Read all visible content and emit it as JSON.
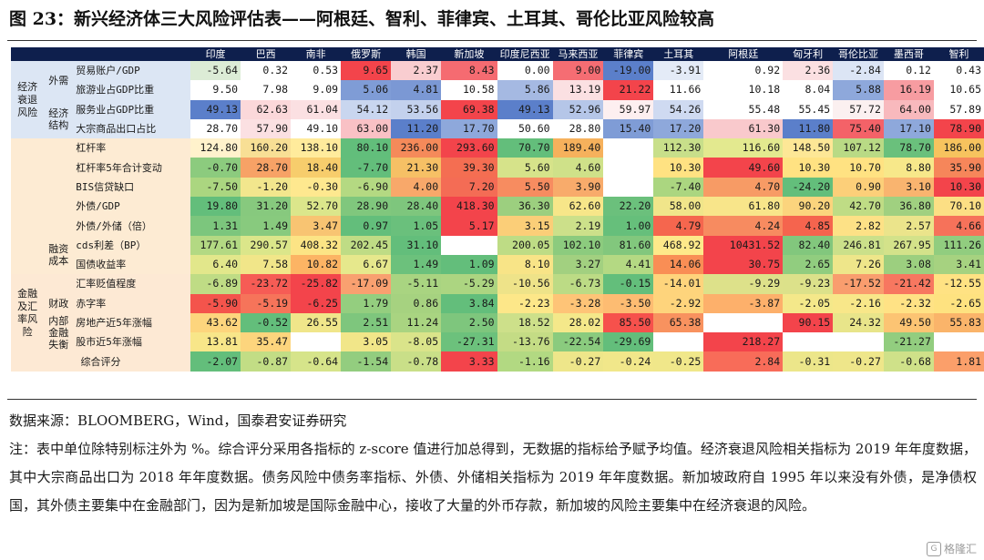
{
  "title": "图 23：新兴经济体三大风险评估表——阿根廷、智利、菲律宾、土耳其、哥伦比亚风险较高",
  "countries": [
    "印度",
    "巴西",
    "南非",
    "俄罗斯",
    "韩国",
    "新加坡",
    "印度尼西亚",
    "马来西亚",
    "菲律宾",
    "土耳其",
    "阿根廷",
    "匈牙利",
    "哥伦比亚",
    "墨西哥",
    "智利"
  ],
  "rows": [
    {
      "g1": "经济衰退风险",
      "g2": "外需",
      "ind": "贸易账户/GDP",
      "values": [
        "-5.64",
        "0.32",
        "0.53",
        "9.65",
        "2.37",
        "8.43",
        "0.00",
        "9.00",
        "-19.00",
        "-3.91",
        "0.92",
        "2.36",
        "-2.84",
        "0.12",
        "0.43"
      ],
      "colors": [
        "#dcecd6",
        "#ffffff",
        "#ffffff",
        "#f3444b",
        "#f9cdd0",
        "#f56b71",
        "#ffffff",
        "#f56d73",
        "#5b7fca",
        "#e4ebf7",
        "#ffffff",
        "#fbe0e2",
        "#dce5f5",
        "#ffffff",
        "#ffffff"
      ]
    },
    {
      "g1": "",
      "g2": "",
      "ind": "旅游业占GDP比重",
      "values": [
        "9.50",
        "7.98",
        "9.09",
        "5.06",
        "4.81",
        "10.58",
        "5.86",
        "13.19",
        "21.22",
        "11.66",
        "10.18",
        "8.04",
        "5.88",
        "16.19",
        "10.65"
      ],
      "colors": [
        "#ffffff",
        "#ffffff",
        "#ffffff",
        "#7f9cd6",
        "#7b98d4",
        "#ffffff",
        "#a5b9e2",
        "#fbe0e2",
        "#f3444b",
        "#ffffff",
        "#ffffff",
        "#ffffff",
        "#8ea8db",
        "#f79ca1",
        "#ffffff"
      ]
    },
    {
      "g1": "",
      "g2": "经济结构",
      "ind": "服务业占GDP比重",
      "values": [
        "49.13",
        "62.63",
        "61.04",
        "54.12",
        "53.56",
        "69.38",
        "49.13",
        "52.96",
        "59.97",
        "54.26",
        "55.48",
        "55.45",
        "57.72",
        "64.00",
        "57.89"
      ],
      "colors": [
        "#5b7fca",
        "#fbd8da",
        "#fbe0e2",
        "#c9d6ef",
        "#c3d1ed",
        "#f3444b",
        "#5b7fca",
        "#b5c6e8",
        "#fdeff0",
        "#cfdaf1",
        "#ffffff",
        "#ffffff",
        "#fbf0f0",
        "#f8b9bd",
        "#ffffff"
      ]
    },
    {
      "g1": "",
      "g2": "",
      "ind": "大宗商品出口占比",
      "values": [
        "28.70",
        "57.90",
        "49.10",
        "63.00",
        "11.20",
        "17.70",
        "50.60",
        "28.80",
        "15.40",
        "17.20",
        "61.30",
        "11.80",
        "75.40",
        "17.10",
        "78.90"
      ],
      "colors": [
        "#ffffff",
        "#fbe0e2",
        "#ffffff",
        "#f9c1c5",
        "#5b7fca",
        "#8ea8db",
        "#ffffff",
        "#ffffff",
        "#7f9cd6",
        "#8ea8db",
        "#f9c9cc",
        "#5b7fca",
        "#f46268",
        "#8ea8db",
        "#f3444b"
      ]
    },
    {
      "g1": "",
      "g2": "",
      "ind": "杠杆率",
      "values": [
        "124.80",
        "160.20",
        "138.10",
        "80.10",
        "236.00",
        "293.60",
        "70.70",
        "189.40",
        "",
        "112.30",
        "116.60",
        "148.50",
        "107.12",
        "78.70",
        "186.00"
      ],
      "colors": [
        "#fff2cc",
        "#f8df95",
        "#ffeb9c",
        "#62be7b",
        "#f58a5a",
        "#f3444b",
        "#63be7b",
        "#f6b15c",
        "#ffffff",
        "#c8df8a",
        "#e3e98f",
        "#fde796",
        "#b9da85",
        "#6ac07c",
        "#f7c35e"
      ]
    },
    {
      "g1": "",
      "g2": "",
      "ind": "杠杆率5年合计变动",
      "values": [
        "-0.70",
        "28.70",
        "18.40",
        "-7.70",
        "21.30",
        "39.30",
        "5.60",
        "4.60",
        "",
        "10.30",
        "49.60",
        "10.30",
        "10.70",
        "8.80",
        "35.90"
      ],
      "colors": [
        "#8ccb7e",
        "#f7a266",
        "#f7cd6c",
        "#63be7b",
        "#f6c065",
        "#f46e52",
        "#d6e38a",
        "#cfe189",
        "#ffffff",
        "#ffe282",
        "#f3444b",
        "#ffe282",
        "#ffe282",
        "#f7e88a",
        "#f6865a"
      ]
    },
    {
      "g1": "",
      "g2": "",
      "ind": "BIS信贷缺口",
      "values": [
        "-7.50",
        "-1.20",
        "-0.30",
        "-6.90",
        "4.00",
        "7.20",
        "5.50",
        "3.90",
        "",
        "-7.40",
        "4.70",
        "-24.20",
        "0.90",
        "3.10",
        "10.30"
      ],
      "colors": [
        "#abd680",
        "#f2e68d",
        "#fee88f",
        "#b4d982",
        "#f8a86a",
        "#f46c55",
        "#f78c60",
        "#f8ab6b",
        "#ffffff",
        "#abd680",
        "#f79b65",
        "#63be7b",
        "#fccf79",
        "#f9b46f",
        "#f3444b"
      ]
    },
    {
      "g1": "",
      "g2": "",
      "ind": "外债/GDP",
      "values": [
        "19.80",
        "31.20",
        "52.70",
        "28.90",
        "28.40",
        "418.30",
        "36.30",
        "62.60",
        "22.20",
        "58.00",
        "61.80",
        "90.20",
        "42.70",
        "36.80",
        "70.10"
      ],
      "colors": [
        "#63be7b",
        "#87c97e",
        "#dbe68b",
        "#80c77d",
        "#7ec67d",
        "#f3444b",
        "#9ccf7f",
        "#f7e689",
        "#6bc07c",
        "#f0e58a",
        "#f8e58a",
        "#fbd47d",
        "#bfdc85",
        "#a0d080",
        "#fcdf84"
      ]
    },
    {
      "g1": "",
      "g2": "",
      "ind": "外债/外储（倍）",
      "values": [
        "1.31",
        "1.49",
        "3.47",
        "0.97",
        "1.05",
        "5.17",
        "3.15",
        "2.19",
        "1.00",
        "4.79",
        "4.24",
        "4.85",
        "2.82",
        "2.57",
        "4.66"
      ],
      "colors": [
        "#7cc67d",
        "#88ca7e",
        "#f8c472",
        "#63be7b",
        "#6ac07c",
        "#f3444b",
        "#fbce78",
        "#cce08a",
        "#66bf7b",
        "#f5664e",
        "#f78b60",
        "#f5644e",
        "#fde186",
        "#ebe48b",
        "#f6725a"
      ]
    },
    {
      "g1": "",
      "g2": "融资成本",
      "ind": "cds利差（BP）",
      "values": [
        "177.61",
        "290.57",
        "408.32",
        "202.45",
        "31.10",
        "",
        "200.05",
        "102.10",
        "81.60",
        "468.92",
        "10431.52",
        "82.40",
        "246.81",
        "267.95",
        "111.26"
      ],
      "colors": [
        "#b3d983",
        "#dbe68a",
        "#fce485",
        "#bfdc85",
        "#63be7b",
        "#ffffff",
        "#bedc85",
        "#8ccb7e",
        "#82c77d",
        "#fee98a",
        "#f3444b",
        "#82c77d",
        "#cbe08a",
        "#d3e28a",
        "#91cd7f"
      ]
    },
    {
      "g1": "",
      "g2": "",
      "ind": "国债收益率",
      "values": [
        "6.40",
        "7.58",
        "10.82",
        "6.67",
        "1.49",
        "1.09",
        "8.10",
        "3.27",
        "4.41",
        "14.06",
        "30.75",
        "2.65",
        "7.26",
        "3.08",
        "3.41"
      ],
      "colors": [
        "#e2e78b",
        "#f1e689",
        "#fcb464",
        "#e6e88c",
        "#6cc17c",
        "#63be7b",
        "#f8e487",
        "#a2d080",
        "#b4d983",
        "#f98e55",
        "#f3444b",
        "#91cd7f",
        "#eee68a",
        "#9ccf7f",
        "#a6d280"
      ]
    },
    {
      "g1": "金融及汇率风险",
      "g2": "",
      "ind": "汇率贬值程度",
      "values": [
        "-6.89",
        "-23.72",
        "-25.82",
        "-17.09",
        "-5.11",
        "-5.29",
        "-10.56",
        "-6.73",
        "-0.15",
        "-14.01",
        "-9.29",
        "-9.23",
        "-17.52",
        "-21.42",
        "-12.55"
      ],
      "colors": [
        "#bfdc85",
        "#f65c55",
        "#f3444b",
        "#f9a070",
        "#a9d481",
        "#acd581",
        "#eee389",
        "#bcdb85",
        "#63be7b",
        "#fed47c",
        "#dde18a",
        "#dce18a",
        "#f99d6e",
        "#f77760",
        "#ffe283"
      ]
    },
    {
      "g1": "",
      "g2": "财政",
      "ind": "赤字率",
      "values": [
        "-5.90",
        "-5.19",
        "-6.25",
        "1.79",
        "0.86",
        "3.84",
        "-2.23",
        "-3.28",
        "-3.50",
        "-2.92",
        "-3.87",
        "-2.05",
        "-2.16",
        "-2.32",
        "-2.65"
      ],
      "colors": [
        "#f4544c",
        "#f6745a",
        "#f3444b",
        "#94ce7f",
        "#a6d280",
        "#63be7b",
        "#fde789",
        "#fec477",
        "#fdbc72",
        "#fed47c",
        "#fdb06b",
        "#f4e88a",
        "#f8e789",
        "#ffe285",
        "#fee280"
      ]
    },
    {
      "g1": "",
      "g2": "内部金融失衡",
      "ind": "房地产近5年涨幅",
      "values": [
        "43.62",
        "-0.52",
        "26.55",
        "2.51",
        "11.24",
        "2.50",
        "18.52",
        "28.02",
        "85.50",
        "65.38",
        "",
        "90.15",
        "24.32",
        "49.50",
        "55.83"
      ],
      "colors": [
        "#fdd57d",
        "#63be7b",
        "#f0e68a",
        "#7ec67d",
        "#a9d481",
        "#7ec67d",
        "#cde08a",
        "#f4e88a",
        "#f6514c",
        "#f8925f",
        "#ffffff",
        "#f3444b",
        "#e8e58a",
        "#fcc473",
        "#fab46a"
      ]
    },
    {
      "g1": "",
      "g2": "",
      "ind": "股市近5年涨幅",
      "values": [
        "13.81",
        "35.47",
        "",
        "3.05",
        "-8.05",
        "-27.31",
        "-13.76",
        "-22.54",
        "-29.69",
        "",
        "218.27",
        "",
        "",
        "-21.27",
        ""
      ],
      "colors": [
        "#f8e689",
        "#fdd57d",
        "#ffffff",
        "#f1e689",
        "#dae48a",
        "#6cc17c",
        "#c4dc85",
        "#8acb7e",
        "#63be7b",
        "#ffffff",
        "#f3444b",
        "#ffffff",
        "#ffffff",
        "#92cd7f",
        "#ffffff"
      ]
    }
  ],
  "summary": {
    "label": "综合评分",
    "values": [
      "-2.07",
      "-0.87",
      "-0.64",
      "-1.54",
      "-0.78",
      "3.33",
      "-1.16",
      "-0.27",
      "-0.24",
      "-0.25",
      "2.84",
      "-0.31",
      "-0.27",
      "-0.68",
      "1.81"
    ],
    "colors": [
      "#63be7b",
      "#c2dd85",
      "#d6e48a",
      "#93cd7f",
      "#c9df88",
      "#f3444b",
      "#b2d982",
      "#eee68a",
      "#f1e78a",
      "#f0e78a",
      "#f86c59",
      "#ece68a",
      "#eee68a",
      "#cfe189",
      "#fb9f6a"
    ]
  },
  "source": "数据来源：BLOOMBERG，Wind，国泰君安证券研究",
  "note": "注：表中单位除特别标注外为 %。综合评分采用各指标的 z-score 值进行加总得到，无数据的指标给予赋予均值。经济衰退风险相关指标为 2019 年年度数据，其中大宗商品出口为 2018 年年度数据。债务风险中债务率指标、外债、外储相关指标为 2019 年年度数据。新加坡政府自 1995 年以来没有外债，是净债权国，其外债主要集中在金融部门，因为是新加坡是国际金融中心，接收了大量的外币存款，新加坡的风险主要集中在经济衰退的风险。",
  "watermark": "格隆汇",
  "colors": {
    "header_bg": "#0e1f4d",
    "header_text": "#ffffff",
    "group_bg_economy": "#dce6f4",
    "group_bg_debt": "#fdebd3",
    "group_bg_finance": "#fde9d4"
  }
}
